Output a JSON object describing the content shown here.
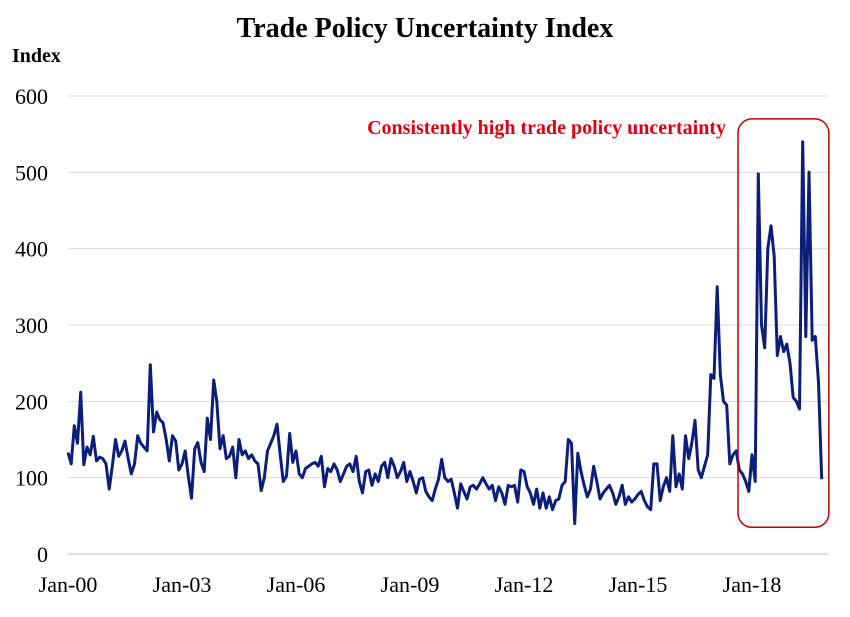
{
  "chart_data": {
    "type": "line",
    "title": "Trade Policy Uncertainty Index",
    "ylabel": "Index",
    "xlabel": "",
    "ylim": [
      0,
      600
    ],
    "yticks": [
      0,
      100,
      200,
      300,
      400,
      500,
      600
    ],
    "xtick_labels": [
      "Jan-00",
      "Jan-03",
      "Jan-06",
      "Jan-09",
      "Jan-12",
      "Jan-15",
      "Jan-18"
    ],
    "x_range": [
      "2000-01",
      "2019-12"
    ],
    "grid": true,
    "series": [
      {
        "name": "",
        "color": "#0b1f7a",
        "points": [
          [
            "2000-01",
            133
          ],
          [
            "2000-02",
            118
          ],
          [
            "2000-03",
            168
          ],
          [
            "2000-04",
            145
          ],
          [
            "2000-05",
            212
          ],
          [
            "2000-06",
            117
          ],
          [
            "2000-07",
            140
          ],
          [
            "2000-08",
            130
          ],
          [
            "2000-09",
            154
          ],
          [
            "2000-10",
            122
          ],
          [
            "2000-11",
            127
          ],
          [
            "2000-12",
            125
          ],
          [
            "2001-01",
            118
          ],
          [
            "2001-02",
            85
          ],
          [
            "2001-03",
            115
          ],
          [
            "2001-04",
            150
          ],
          [
            "2001-05",
            128
          ],
          [
            "2001-06",
            135
          ],
          [
            "2001-07",
            148
          ],
          [
            "2001-08",
            125
          ],
          [
            "2001-09",
            105
          ],
          [
            "2001-10",
            118
          ],
          [
            "2001-11",
            155
          ],
          [
            "2001-12",
            145
          ],
          [
            "2002-01",
            140
          ],
          [
            "2002-02",
            135
          ],
          [
            "2002-03",
            248
          ],
          [
            "2002-04",
            160
          ],
          [
            "2002-05",
            186
          ],
          [
            "2002-06",
            176
          ],
          [
            "2002-07",
            172
          ],
          [
            "2002-08",
            150
          ],
          [
            "2002-09",
            122
          ],
          [
            "2002-10",
            155
          ],
          [
            "2002-11",
            148
          ],
          [
            "2002-12",
            110
          ],
          [
            "2003-01",
            118
          ],
          [
            "2003-02",
            135
          ],
          [
            "2003-03",
            102
          ],
          [
            "2003-04",
            73
          ],
          [
            "2003-05",
            138
          ],
          [
            "2003-06",
            146
          ],
          [
            "2003-07",
            120
          ],
          [
            "2003-08",
            108
          ],
          [
            "2003-09",
            178
          ],
          [
            "2003-10",
            150
          ],
          [
            "2003-11",
            228
          ],
          [
            "2003-12",
            200
          ],
          [
            "2004-01",
            138
          ],
          [
            "2004-02",
            155
          ],
          [
            "2004-03",
            125
          ],
          [
            "2004-04",
            128
          ],
          [
            "2004-05",
            140
          ],
          [
            "2004-06",
            100
          ],
          [
            "2004-07",
            150
          ],
          [
            "2004-08",
            130
          ],
          [
            "2004-09",
            135
          ],
          [
            "2004-10",
            125
          ],
          [
            "2004-11",
            130
          ],
          [
            "2004-12",
            122
          ],
          [
            "2005-01",
            118
          ],
          [
            "2005-02",
            83
          ],
          [
            "2005-03",
            100
          ],
          [
            "2005-04",
            135
          ],
          [
            "2005-05",
            145
          ],
          [
            "2005-06",
            155
          ],
          [
            "2005-07",
            170
          ],
          [
            "2005-08",
            130
          ],
          [
            "2005-09",
            95
          ],
          [
            "2005-10",
            102
          ],
          [
            "2005-11",
            158
          ],
          [
            "2005-12",
            120
          ],
          [
            "2006-01",
            135
          ],
          [
            "2006-02",
            105
          ],
          [
            "2006-03",
            100
          ],
          [
            "2006-04",
            112
          ],
          [
            "2006-05",
            115
          ],
          [
            "2006-06",
            118
          ],
          [
            "2006-07",
            120
          ],
          [
            "2006-08",
            115
          ],
          [
            "2006-09",
            128
          ],
          [
            "2006-10",
            88
          ],
          [
            "2006-11",
            112
          ],
          [
            "2006-12",
            108
          ],
          [
            "2007-01",
            118
          ],
          [
            "2007-02",
            110
          ],
          [
            "2007-03",
            95
          ],
          [
            "2007-04",
            105
          ],
          [
            "2007-05",
            115
          ],
          [
            "2007-06",
            118
          ],
          [
            "2007-07",
            108
          ],
          [
            "2007-08",
            128
          ],
          [
            "2007-09",
            95
          ],
          [
            "2007-10",
            80
          ],
          [
            "2007-11",
            108
          ],
          [
            "2007-12",
            110
          ],
          [
            "2008-01",
            90
          ],
          [
            "2008-02",
            105
          ],
          [
            "2008-03",
            95
          ],
          [
            "2008-04",
            115
          ],
          [
            "2008-05",
            120
          ],
          [
            "2008-06",
            100
          ],
          [
            "2008-07",
            125
          ],
          [
            "2008-08",
            115
          ],
          [
            "2008-09",
            100
          ],
          [
            "2008-10",
            108
          ],
          [
            "2008-11",
            120
          ],
          [
            "2008-12",
            95
          ],
          [
            "2009-01",
            108
          ],
          [
            "2009-02",
            95
          ],
          [
            "2009-03",
            80
          ],
          [
            "2009-04",
            98
          ],
          [
            "2009-05",
            100
          ],
          [
            "2009-06",
            82
          ],
          [
            "2009-07",
            75
          ],
          [
            "2009-08",
            70
          ],
          [
            "2009-09",
            85
          ],
          [
            "2009-10",
            98
          ],
          [
            "2009-11",
            124
          ],
          [
            "2009-12",
            100
          ],
          [
            "2010-01",
            95
          ],
          [
            "2010-02",
            98
          ],
          [
            "2010-03",
            80
          ],
          [
            "2010-04",
            60
          ],
          [
            "2010-05",
            92
          ],
          [
            "2010-06",
            82
          ],
          [
            "2010-07",
            72
          ],
          [
            "2010-08",
            88
          ],
          [
            "2010-09",
            90
          ],
          [
            "2010-10",
            85
          ],
          [
            "2010-11",
            92
          ],
          [
            "2010-12",
            100
          ],
          [
            "2011-01",
            92
          ],
          [
            "2011-02",
            85
          ],
          [
            "2011-03",
            90
          ],
          [
            "2011-04",
            70
          ],
          [
            "2011-05",
            88
          ],
          [
            "2011-06",
            80
          ],
          [
            "2011-07",
            65
          ],
          [
            "2011-08",
            90
          ],
          [
            "2011-09",
            88
          ],
          [
            "2011-10",
            90
          ],
          [
            "2011-11",
            68
          ],
          [
            "2011-12",
            110
          ],
          [
            "2012-01",
            108
          ],
          [
            "2012-02",
            88
          ],
          [
            "2012-03",
            80
          ],
          [
            "2012-04",
            65
          ],
          [
            "2012-05",
            85
          ],
          [
            "2012-06",
            60
          ],
          [
            "2012-07",
            80
          ],
          [
            "2012-08",
            60
          ],
          [
            "2012-09",
            75
          ],
          [
            "2012-10",
            58
          ],
          [
            "2012-11",
            70
          ],
          [
            "2012-12",
            72
          ],
          [
            "2013-01",
            90
          ],
          [
            "2013-02",
            95
          ],
          [
            "2013-03",
            150
          ],
          [
            "2013-04",
            145
          ],
          [
            "2013-05",
            40
          ],
          [
            "2013-06",
            132
          ],
          [
            "2013-07",
            108
          ],
          [
            "2013-08",
            90
          ],
          [
            "2013-09",
            75
          ],
          [
            "2013-10",
            85
          ],
          [
            "2013-11",
            115
          ],
          [
            "2013-12",
            95
          ],
          [
            "2014-01",
            72
          ],
          [
            "2014-02",
            80
          ],
          [
            "2014-03",
            85
          ],
          [
            "2014-04",
            90
          ],
          [
            "2014-05",
            80
          ],
          [
            "2014-06",
            65
          ],
          [
            "2014-07",
            75
          ],
          [
            "2014-08",
            90
          ],
          [
            "2014-09",
            65
          ],
          [
            "2014-10",
            75
          ],
          [
            "2014-11",
            68
          ],
          [
            "2014-12",
            72
          ],
          [
            "2015-01",
            78
          ],
          [
            "2015-02",
            82
          ],
          [
            "2015-03",
            70
          ],
          [
            "2015-04",
            62
          ],
          [
            "2015-05",
            58
          ],
          [
            "2015-06",
            118
          ],
          [
            "2015-07",
            118
          ],
          [
            "2015-08",
            70
          ],
          [
            "2015-09",
            88
          ],
          [
            "2015-10",
            100
          ],
          [
            "2015-11",
            82
          ],
          [
            "2015-12",
            155
          ],
          [
            "2016-01",
            88
          ],
          [
            "2016-02",
            105
          ],
          [
            "2016-03",
            85
          ],
          [
            "2016-04",
            155
          ],
          [
            "2016-05",
            125
          ],
          [
            "2016-06",
            145
          ],
          [
            "2016-07",
            175
          ],
          [
            "2016-08",
            110
          ],
          [
            "2016-09",
            100
          ],
          [
            "2016-10",
            115
          ],
          [
            "2016-11",
            130
          ],
          [
            "2016-12",
            235
          ],
          [
            "2017-01",
            230
          ],
          [
            "2017-02",
            350
          ],
          [
            "2017-03",
            235
          ],
          [
            "2017-04",
            200
          ],
          [
            "2017-05",
            195
          ],
          [
            "2017-06",
            118
          ],
          [
            "2017-07",
            130
          ],
          [
            "2017-08",
            135
          ],
          [
            "2017-09",
            110
          ],
          [
            "2017-10",
            105
          ],
          [
            "2017-11",
            95
          ],
          [
            "2017-12",
            82
          ],
          [
            "2018-01",
            130
          ],
          [
            "2018-02",
            95
          ],
          [
            "2018-03",
            498
          ],
          [
            "2018-04",
            300
          ],
          [
            "2018-05",
            270
          ],
          [
            "2018-06",
            400
          ],
          [
            "2018-07",
            430
          ],
          [
            "2018-08",
            390
          ],
          [
            "2018-09",
            260
          ],
          [
            "2018-10",
            285
          ],
          [
            "2018-11",
            265
          ],
          [
            "2018-12",
            275
          ],
          [
            "2019-01",
            250
          ],
          [
            "2019-02",
            205
          ],
          [
            "2019-03",
            200
          ],
          [
            "2019-04",
            190
          ],
          [
            "2019-05",
            540
          ],
          [
            "2019-06",
            285
          ],
          [
            "2019-07",
            500
          ],
          [
            "2019-08",
            280
          ],
          [
            "2019-09",
            285
          ],
          [
            "2019-10",
            225
          ],
          [
            "2019-11",
            98
          ]
        ]
      }
    ],
    "annotations": [
      {
        "text": "Consistently high trade policy uncertainty",
        "color": "#e0000f",
        "box_color": "#c00000",
        "box_x_range": [
          "2018-01",
          "2019-12"
        ],
        "box_y_range": [
          35,
          570
        ]
      }
    ]
  }
}
